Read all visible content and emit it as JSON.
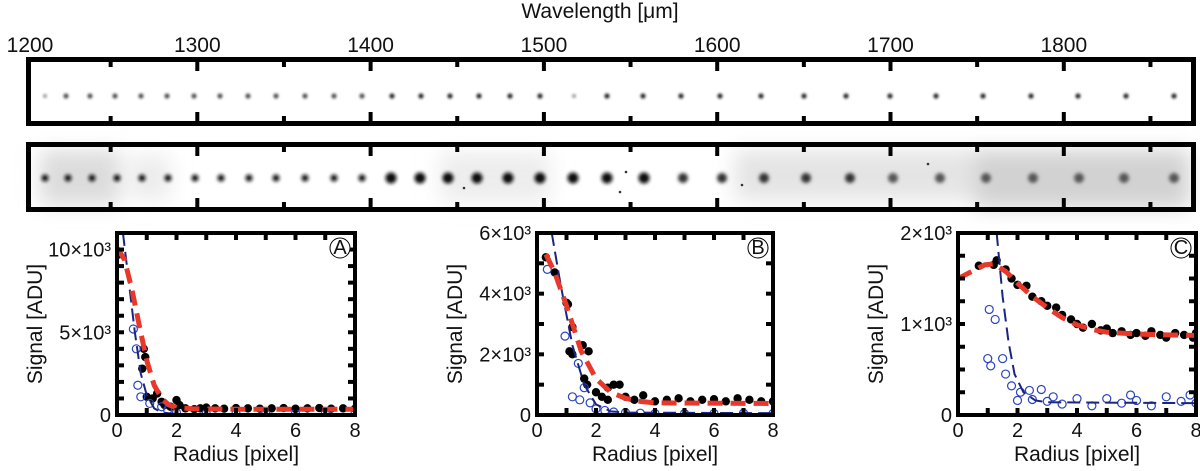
{
  "chart_data": [
    {
      "type": "image",
      "panel": "spectral-strips",
      "xlabel": "Wavelength [μm]",
      "x_ticks": [
        "1200",
        "1300",
        "1400",
        "1500",
        "1600",
        "1700",
        "1800"
      ],
      "strips": 2
    },
    {
      "type": "scatter",
      "panel_label": "A",
      "xlabel": "Radius [pixel]",
      "ylabel": "Signal [ADU]",
      "xlim": [
        0,
        8
      ],
      "ylim": [
        0,
        11000
      ],
      "x_ticks": [
        {
          "value": 0,
          "label": "0"
        },
        {
          "value": 2,
          "label": "2"
        },
        {
          "value": 4,
          "label": "4"
        },
        {
          "value": 6,
          "label": "6"
        },
        {
          "value": 8,
          "label": "8"
        }
      ],
      "y_ticks": [
        {
          "value": 0,
          "label": "0"
        },
        {
          "value": 5000,
          "label": "5×10³"
        },
        {
          "value": 10000,
          "label": "10×10³"
        }
      ],
      "colors": {
        "filled": "#000000",
        "open": "#2a44c0",
        "fit_red": "#e8382a",
        "fit_blue": "#1a2580"
      },
      "series": [
        {
          "style": "filled-points",
          "points": [
            [
              0,
              9800
            ],
            [
              0.05,
              9700
            ],
            [
              0.9,
              4000
            ],
            [
              0.95,
              3500
            ],
            [
              0.85,
              2800
            ],
            [
              1.0,
              1100
            ],
            [
              1.2,
              1000
            ],
            [
              1.35,
              1300
            ],
            [
              1.5,
              800
            ],
            [
              1.6,
              600
            ],
            [
              1.8,
              500
            ],
            [
              2.0,
              900
            ],
            [
              2.1,
              600
            ],
            [
              2.3,
              400
            ],
            [
              2.6,
              350
            ],
            [
              2.8,
              400
            ],
            [
              3.0,
              450
            ],
            [
              3.3,
              400
            ],
            [
              3.6,
              380
            ],
            [
              4.0,
              420
            ],
            [
              4.4,
              400
            ],
            [
              4.8,
              380
            ],
            [
              5.2,
              400
            ],
            [
              5.6,
              420
            ],
            [
              6.0,
              380
            ],
            [
              6.4,
              400
            ],
            [
              6.8,
              420
            ],
            [
              7.2,
              380
            ],
            [
              7.6,
              400
            ],
            [
              8,
              380
            ]
          ]
        },
        {
          "style": "open-points",
          "points": [
            [
              0.55,
              5200
            ],
            [
              0.65,
              4000
            ],
            [
              0.7,
              1800
            ],
            [
              0.8,
              1100
            ],
            [
              1.1,
              700
            ],
            [
              1.5,
              500
            ],
            [
              1.7,
              300
            ],
            [
              2.0,
              150
            ],
            [
              3,
              100
            ],
            [
              4,
              80
            ],
            [
              5,
              80
            ],
            [
              6,
              80
            ],
            [
              7,
              80
            ],
            [
              8,
              100
            ]
          ]
        },
        {
          "style": "red-dashed-fit",
          "points": [
            [
              0,
              10100
            ],
            [
              0.25,
              9400
            ],
            [
              0.5,
              7600
            ],
            [
              0.75,
              5400
            ],
            [
              1,
              3300
            ],
            [
              1.25,
              1800
            ],
            [
              1.5,
              1000
            ],
            [
              1.75,
              600
            ],
            [
              2,
              450
            ],
            [
              2.5,
              380
            ],
            [
              3,
              360
            ],
            [
              4,
              350
            ],
            [
              8,
              350
            ]
          ]
        },
        {
          "style": "blue-dashed-fit",
          "points": [
            [
              0.2,
              11000
            ],
            [
              0.4,
              8000
            ],
            [
              0.6,
              5000
            ],
            [
              0.8,
              2500
            ],
            [
              1,
              1200
            ],
            [
              1.25,
              400
            ],
            [
              1.5,
              150
            ],
            [
              2,
              60
            ],
            [
              3,
              50
            ],
            [
              8,
              50
            ]
          ]
        }
      ]
    },
    {
      "type": "scatter",
      "panel_label": "B",
      "xlabel": "Radius [pixel]",
      "ylabel": "Signal [ADU]",
      "xlim": [
        0,
        8
      ],
      "ylim": [
        0,
        6000
      ],
      "x_ticks": [
        {
          "value": 0,
          "label": "0"
        },
        {
          "value": 2,
          "label": "2"
        },
        {
          "value": 4,
          "label": "4"
        },
        {
          "value": 6,
          "label": "6"
        },
        {
          "value": 8,
          "label": "8"
        }
      ],
      "y_ticks": [
        {
          "value": 0,
          "label": "0"
        },
        {
          "value": 2000,
          "label": "2×10³"
        },
        {
          "value": 4000,
          "label": "4×10³"
        },
        {
          "value": 6000,
          "label": "6×10³"
        }
      ],
      "colors": {
        "filled": "#000000",
        "open": "#2a44c0",
        "fit_red": "#e8382a",
        "fit_blue": "#1a2580"
      },
      "series": [
        {
          "style": "filled-points",
          "points": [
            [
              0.3,
              5200
            ],
            [
              0.6,
              4700
            ],
            [
              1.0,
              3700
            ],
            [
              1.05,
              3650
            ],
            [
              1.2,
              2900
            ],
            [
              1.1,
              2100
            ],
            [
              1.2,
              2000
            ],
            [
              1.55,
              2300
            ],
            [
              1.75,
              2100
            ],
            [
              1.6,
              1200
            ],
            [
              1.7,
              1000
            ],
            [
              2.0,
              750
            ],
            [
              2.2,
              600
            ],
            [
              2.4,
              900
            ],
            [
              2.6,
              1000
            ],
            [
              2.8,
              1000
            ],
            [
              2.4,
              500
            ],
            [
              3.0,
              600
            ],
            [
              3.3,
              500
            ],
            [
              3.6,
              650
            ],
            [
              4.0,
              450
            ],
            [
              4.4,
              500
            ],
            [
              4.8,
              550
            ],
            [
              5.2,
              450
            ],
            [
              5.6,
              500
            ],
            [
              6.0,
              520
            ],
            [
              6.4,
              450
            ],
            [
              6.8,
              550
            ],
            [
              7.2,
              500
            ],
            [
              7.6,
              450
            ],
            [
              8,
              450
            ]
          ]
        },
        {
          "style": "open-points",
          "points": [
            [
              0.35,
              4800
            ],
            [
              0.95,
              2600
            ],
            [
              1.4,
              1700
            ],
            [
              1.2,
              600
            ],
            [
              1.45,
              500
            ],
            [
              1.6,
              900
            ],
            [
              1.8,
              400
            ],
            [
              2.0,
              200
            ],
            [
              2.3,
              150
            ],
            [
              2.6,
              100
            ],
            [
              3,
              80
            ],
            [
              3.5,
              60
            ],
            [
              4,
              50
            ],
            [
              5,
              50
            ],
            [
              6,
              50
            ],
            [
              7,
              60
            ],
            [
              8,
              50
            ]
          ]
        },
        {
          "style": "red-dashed-fit",
          "points": [
            [
              0.3,
              5300
            ],
            [
              0.6,
              4700
            ],
            [
              1,
              3600
            ],
            [
              1.5,
              2100
            ],
            [
              2,
              1200
            ],
            [
              2.5,
              750
            ],
            [
              3,
              550
            ],
            [
              3.5,
              450
            ],
            [
              4,
              400
            ],
            [
              8,
              380
            ]
          ]
        },
        {
          "style": "blue-dashed-fit",
          "points": [
            [
              0.5,
              6000
            ],
            [
              0.8,
              4300
            ],
            [
              1.2,
              2300
            ],
            [
              1.6,
              1000
            ],
            [
              2,
              350
            ],
            [
              2.5,
              120
            ],
            [
              3,
              80
            ],
            [
              8,
              60
            ]
          ]
        }
      ]
    },
    {
      "type": "scatter",
      "panel_label": "C",
      "xlabel": "Radius [pixel]",
      "ylabel": "Signal [ADU]",
      "xlim": [
        0,
        8
      ],
      "ylim": [
        0,
        2000
      ],
      "x_ticks": [
        {
          "value": 0,
          "label": "0"
        },
        {
          "value": 2,
          "label": "2"
        },
        {
          "value": 4,
          "label": "4"
        },
        {
          "value": 6,
          "label": "6"
        },
        {
          "value": 8,
          "label": "8"
        }
      ],
      "y_ticks": [
        {
          "value": 0,
          "label": "0"
        },
        {
          "value": 1000,
          "label": "1×10³"
        },
        {
          "value": 2000,
          "label": "2×10³"
        }
      ],
      "colors": {
        "filled": "#000000",
        "open": "#2a44c0",
        "fit_red": "#e8382a",
        "fit_blue": "#1a2580"
      },
      "series": [
        {
          "style": "filled-points",
          "points": [
            [
              0.7,
              1640
            ],
            [
              1.2,
              1650
            ],
            [
              1.3,
              1700
            ],
            [
              1.6,
              1600
            ],
            [
              1.8,
              1500
            ],
            [
              2.0,
              1430
            ],
            [
              2.3,
              1420
            ],
            [
              2.5,
              1300
            ],
            [
              2.8,
              1250
            ],
            [
              3.0,
              1200
            ],
            [
              3.3,
              1180
            ],
            [
              3.5,
              1100
            ],
            [
              3.8,
              1050
            ],
            [
              4.0,
              1000
            ],
            [
              4.2,
              960
            ],
            [
              4.5,
              1000
            ],
            [
              4.8,
              930
            ],
            [
              5.0,
              950
            ],
            [
              5.2,
              900
            ],
            [
              5.5,
              920
            ],
            [
              5.8,
              880
            ],
            [
              6.0,
              900
            ],
            [
              6.3,
              870
            ],
            [
              6.5,
              920
            ],
            [
              6.8,
              880
            ],
            [
              7.0,
              850
            ],
            [
              7.3,
              900
            ],
            [
              7.6,
              880
            ],
            [
              7.9,
              850
            ],
            [
              8,
              900
            ]
          ]
        },
        {
          "style": "open-points",
          "points": [
            [
              1.05,
              1160
            ],
            [
              1.25,
              1050
            ],
            [
              1.0,
              620
            ],
            [
              1.1,
              540
            ],
            [
              1.5,
              620
            ],
            [
              1.6,
              450
            ],
            [
              1.8,
              320
            ],
            [
              2.0,
              160
            ],
            [
              2.1,
              250
            ],
            [
              2.4,
              270
            ],
            [
              2.5,
              170
            ],
            [
              2.8,
              280
            ],
            [
              3.0,
              150
            ],
            [
              3.2,
              200
            ],
            [
              3.5,
              120
            ],
            [
              4,
              180
            ],
            [
              4.5,
              100
            ],
            [
              5,
              180
            ],
            [
              5.5,
              130
            ],
            [
              5.8,
              220
            ],
            [
              6,
              160
            ],
            [
              6.5,
              100
            ],
            [
              7,
              200
            ],
            [
              7.5,
              150
            ],
            [
              7.8,
              220
            ],
            [
              8,
              130
            ]
          ]
        },
        {
          "style": "red-dashed-fit",
          "points": [
            [
              0,
              1500
            ],
            [
              0.9,
              1650
            ],
            [
              1.2,
              1660
            ],
            [
              1.6,
              1580
            ],
            [
              2,
              1450
            ],
            [
              2.5,
              1300
            ],
            [
              3,
              1180
            ],
            [
              3.5,
              1070
            ],
            [
              4,
              990
            ],
            [
              4.5,
              940
            ],
            [
              5,
              910
            ],
            [
              6,
              890
            ],
            [
              7,
              880
            ],
            [
              8,
              875
            ]
          ]
        },
        {
          "style": "blue-dashed-fit",
          "points": [
            [
              1.3,
              2000
            ],
            [
              1.5,
              1300
            ],
            [
              1.7,
              800
            ],
            [
              1.9,
              450
            ],
            [
              2.2,
              250
            ],
            [
              2.6,
              160
            ],
            [
              3,
              140
            ],
            [
              8,
              130
            ]
          ]
        }
      ]
    }
  ]
}
